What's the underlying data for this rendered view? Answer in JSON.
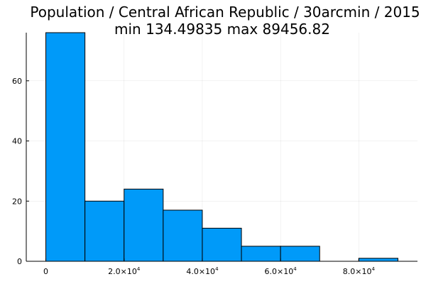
{
  "chart_data": {
    "type": "bar",
    "title_lines": [
      "Population / Central African Republic / 30arcmin / 2015",
      "min 134.49835  max 89456.82"
    ],
    "xlabel": "",
    "ylabel": "",
    "bin_edges": [
      0,
      10000,
      20000,
      30000,
      40000,
      50000,
      60000,
      70000,
      80000,
      90000
    ],
    "values": [
      76,
      20,
      24,
      17,
      11,
      5,
      5,
      0,
      1
    ],
    "xlim": [
      -5000,
      95000
    ],
    "ylim": [
      0,
      76
    ],
    "x_ticks": [
      {
        "value": 0,
        "mantissa": "0",
        "exp": ""
      },
      {
        "value": 20000,
        "mantissa": "2.0×10",
        "exp": "4"
      },
      {
        "value": 40000,
        "mantissa": "4.0×10",
        "exp": "4"
      },
      {
        "value": 60000,
        "mantissa": "6.0×10",
        "exp": "4"
      },
      {
        "value": 80000,
        "mantissa": "8.0×10",
        "exp": "4"
      }
    ],
    "y_ticks": [
      {
        "value": 0,
        "label": "0"
      },
      {
        "value": 20,
        "label": "20"
      },
      {
        "value": 40,
        "label": "40"
      },
      {
        "value": 60,
        "label": "60"
      }
    ],
    "grid": true,
    "legend": "none",
    "colors": {
      "bar_fill": "#009af9",
      "bar_edge": "#000000"
    }
  }
}
